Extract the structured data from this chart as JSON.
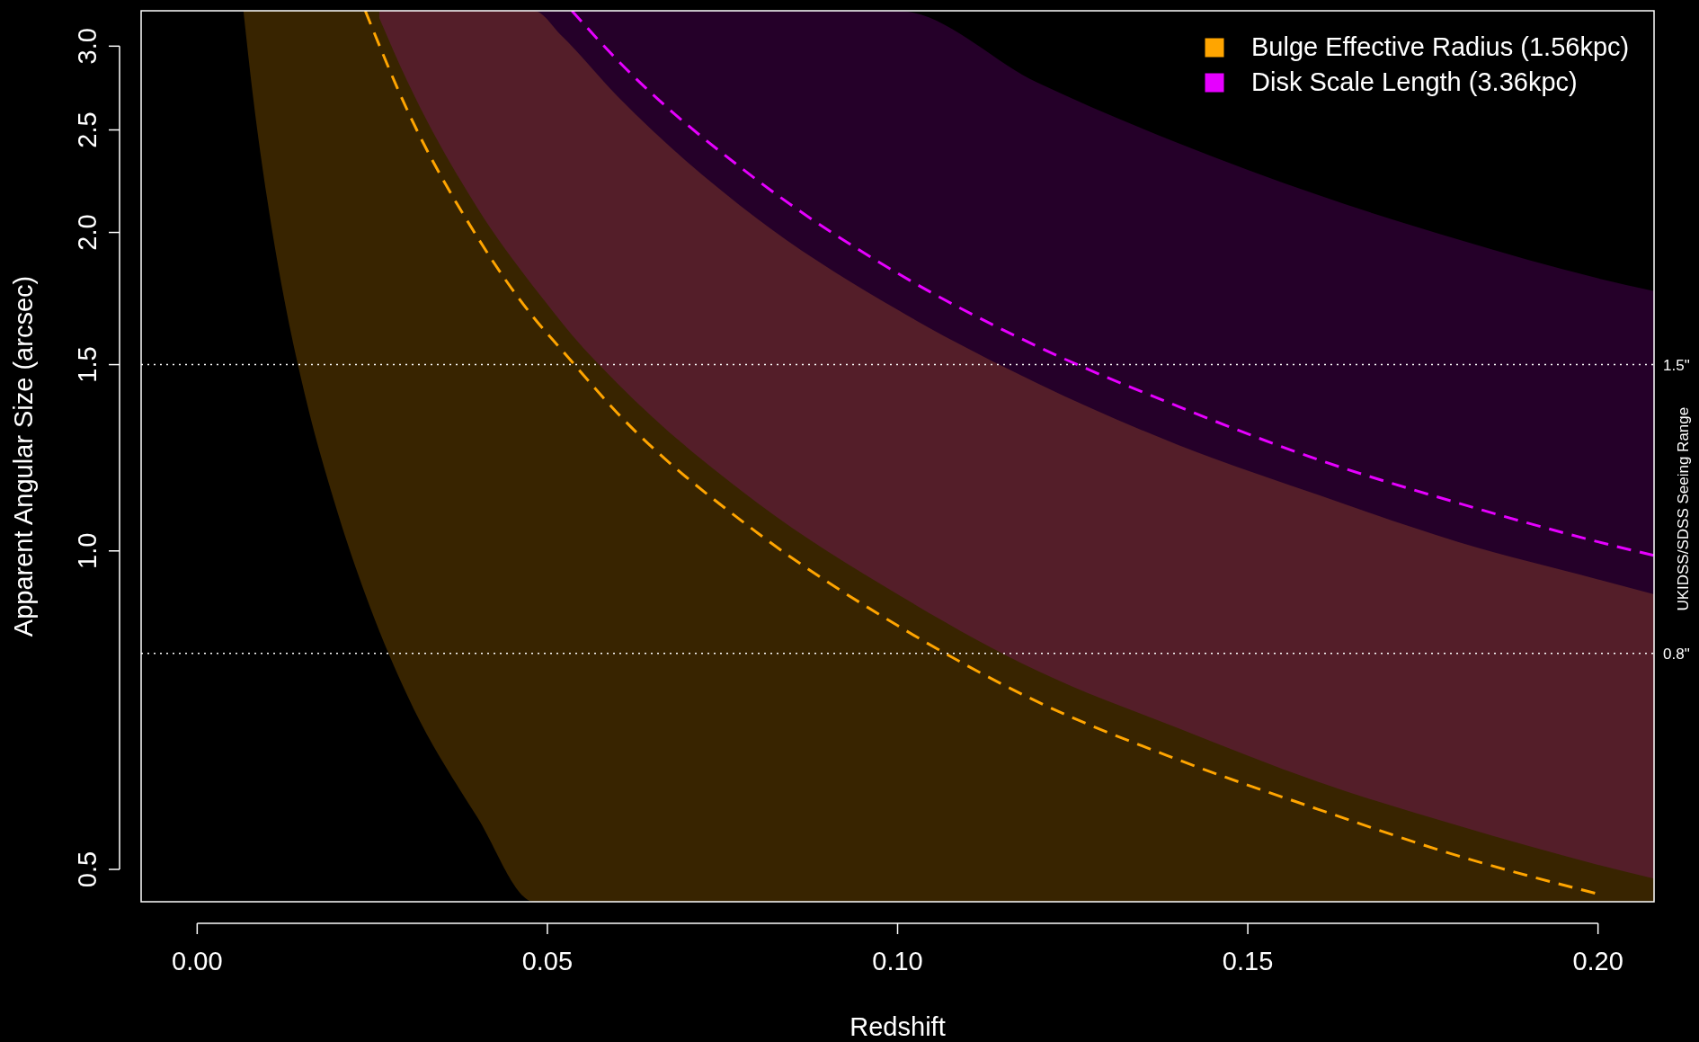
{
  "chart_data": {
    "type": "line",
    "xlabel": "Redshift",
    "ylabel": "Apparent Angular Size (arcsec)",
    "log": "y",
    "xlim": [
      -0.008,
      0.208
    ],
    "ylim": [
      0.466,
      3.24
    ],
    "xticks": [
      {
        "value": 0,
        "label": "0.00"
      },
      {
        "value": 0.05,
        "label": "0.05"
      },
      {
        "value": 0.1,
        "label": "0.10"
      },
      {
        "value": 0.15,
        "label": "0.15"
      },
      {
        "value": 0.2,
        "label": "0.20"
      }
    ],
    "yticks": [
      0.5,
      {
        "value": 1,
        "label": "1.0"
      },
      1.5,
      {
        "value": 2,
        "label": "2.0"
      },
      2.5,
      {
        "value": 3,
        "label": "3.0"
      }
    ],
    "grid": false,
    "legend": "top right",
    "line_style": "dashed",
    "marker": "none",
    "series": [
      {
        "name": "Bulge Effective Radius (1.56kpc)",
        "color": "#ffa500",
        "x": [
          0.0066,
          0.008,
          0.01,
          0.0125,
          0.015,
          0.02,
          0.024,
          0.03,
          0.04,
          0.0481,
          0.052,
          0.06,
          0.08,
          0.1,
          0.12,
          0.14,
          0.16,
          0.18,
          0.2,
          0.208
        ],
        "values": [
          null,
          null,
          null,
          null,
          null,
          null,
          3.24,
          2.61,
          1.98,
          1.66,
          1.55,
          1.35,
          1.04,
          0.85,
          0.72,
          0.635,
          0.57,
          0.515,
          0.474,
          null
        ],
        "lower": [
          3.24,
          2.68,
          2.15,
          1.72,
          1.44,
          1.09,
          0.91,
          0.73,
          0.56,
          0.466,
          0.466,
          0.466,
          0.466,
          0.466,
          0.466,
          0.466,
          0.466,
          0.466,
          0.466,
          0.466
        ],
        "upper": [
          3.24,
          3.24,
          3.24,
          3.24,
          3.24,
          3.24,
          3.24,
          3.24,
          3.24,
          3.24,
          3.07,
          2.69,
          2.06,
          1.69,
          1.44,
          1.26,
          1.13,
          1.02,
          0.94,
          0.91
        ]
      },
      {
        "name": "Disk Scale Length (3.36kpc)",
        "color": "#e600ff",
        "x": [
          0.026,
          0.03,
          0.04,
          0.05,
          0.0535,
          0.06,
          0.08,
          0.1,
          0.12,
          0.14,
          0.16,
          0.18,
          0.2,
          0.208
        ],
        "values": [
          null,
          null,
          null,
          null,
          3.24,
          2.91,
          2.24,
          1.83,
          1.56,
          1.37,
          1.22,
          1.11,
          1.02,
          0.99
        ],
        "lower": [
          3.19,
          2.78,
          2.11,
          1.71,
          1.6,
          1.44,
          1.11,
          0.91,
          0.77,
          0.68,
          0.605,
          0.55,
          0.505,
          0.49
        ],
        "upper": [
          3.24,
          3.24,
          3.24,
          3.24,
          3.24,
          3.24,
          3.24,
          3.24,
          2.77,
          2.43,
          2.17,
          1.97,
          1.81,
          1.76
        ]
      }
    ],
    "ref_lines": [
      {
        "axis": "y",
        "value": 1.5,
        "label": "1.5\"",
        "color": "#ffffff",
        "line_style": "dotted"
      },
      {
        "axis": "y",
        "value": 0.8,
        "label": "0.8\"",
        "color": "#ffffff",
        "line_style": "dotted"
      }
    ],
    "annotations": [
      "UKIDSS/SDSS Seeing Range"
    ]
  }
}
